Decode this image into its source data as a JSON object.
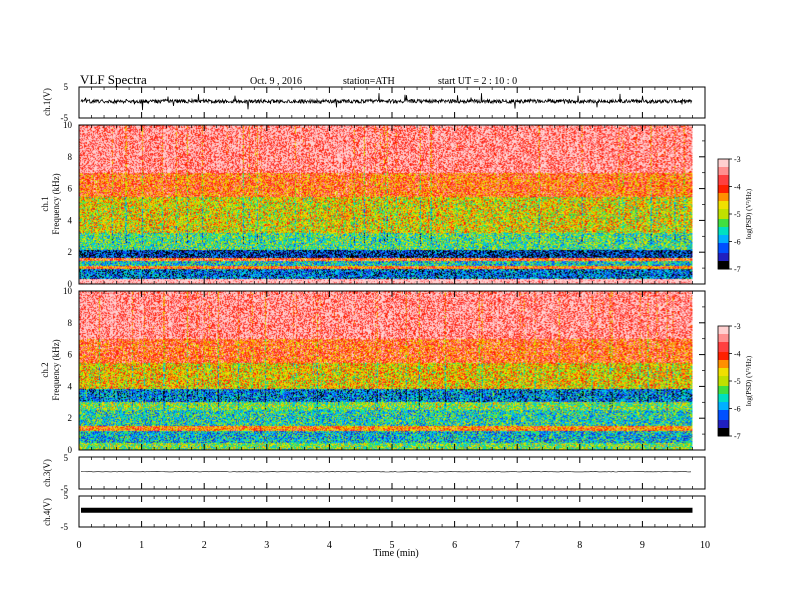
{
  "header": {
    "title": "VLF  Spectra",
    "date": "Oct. 9  , 2016",
    "station": "station=ATH",
    "start": "start  UT  =   2  : 10 : 0"
  },
  "chart_data": [
    {
      "type": "line",
      "name": "ch1-waveform",
      "ylabel": "ch.1(V)",
      "ylim": [
        -5,
        5
      ],
      "yticks": [
        "5",
        "-5"
      ],
      "baseline_v": 0.4,
      "amplitude_v": 0.6,
      "spike_v": 2.6
    },
    {
      "type": "heatmap",
      "name": "ch1-spectrogram",
      "ylabel": "ch.1\nFrequency  (kHz)",
      "ylim": [
        0,
        10
      ],
      "yticks": [
        "0",
        "2",
        "4",
        "6",
        "8",
        "10"
      ],
      "colorbar": {
        "label": "log(PSD) (V²/Hz)",
        "range": [
          -7,
          -3
        ],
        "ticks": [
          "-3",
          "-4",
          "-5",
          "-6",
          "-7"
        ]
      },
      "bands_khz": [
        {
          "from": 0,
          "to": 0.3,
          "level": -3.0
        },
        {
          "from": 0.3,
          "to": 0.9,
          "level": -6.2
        },
        {
          "from": 0.9,
          "to": 1.1,
          "level": -4.2
        },
        {
          "from": 1.1,
          "to": 1.4,
          "level": -5.7
        },
        {
          "from": 1.4,
          "to": 1.6,
          "level": -4.0
        },
        {
          "from": 1.6,
          "to": 2.1,
          "level": -6.5
        },
        {
          "from": 2.1,
          "to": 3.2,
          "level": -5.4
        },
        {
          "from": 3.2,
          "to": 5.5,
          "level": -4.8
        },
        {
          "from": 5.5,
          "to": 7.0,
          "level": -4.1
        },
        {
          "from": 7.0,
          "to": 10,
          "level": -3.4
        }
      ]
    },
    {
      "type": "heatmap",
      "name": "ch2-spectrogram",
      "ylabel": "ch.2\nFrequency  (kHz)",
      "ylim": [
        0,
        10
      ],
      "yticks": [
        "0",
        "2",
        "4",
        "6",
        "8",
        "10"
      ],
      "colorbar": {
        "label": "log(PSD) (V²/Hz)",
        "range": [
          -7,
          -3
        ],
        "ticks": [
          "-3",
          "-4",
          "-5",
          "-6",
          "-7"
        ]
      },
      "bands_khz": [
        {
          "from": 0,
          "to": 0.4,
          "level": -5.2
        },
        {
          "from": 0.4,
          "to": 1.2,
          "level": -5.8
        },
        {
          "from": 1.2,
          "to": 1.5,
          "level": -4.3
        },
        {
          "from": 1.5,
          "to": 2.5,
          "level": -5.6
        },
        {
          "from": 2.5,
          "to": 3.0,
          "level": -5.2
        },
        {
          "from": 3.0,
          "to": 3.8,
          "level": -6.1
        },
        {
          "from": 3.8,
          "to": 5.5,
          "level": -4.7
        },
        {
          "from": 5.5,
          "to": 7.0,
          "level": -4.0
        },
        {
          "from": 7.0,
          "to": 10,
          "level": -3.4
        }
      ]
    },
    {
      "type": "line",
      "name": "ch3-waveform",
      "ylabel": "ch.3(V)",
      "ylim": [
        -5,
        5
      ],
      "yticks": [
        "5",
        "-5"
      ],
      "baseline_v": 0.4
    },
    {
      "type": "line",
      "name": "ch4-waveform",
      "ylabel": "ch.4(V)",
      "ylim": [
        -5,
        5
      ],
      "yticks": [
        "5",
        "-5"
      ],
      "baseline_v": 0.4
    }
  ],
  "xaxis": {
    "xlabel": "Time  (min)",
    "xlim": [
      0,
      10
    ],
    "xticks": [
      "0",
      "1",
      "2",
      "3",
      "4",
      "5",
      "6",
      "7",
      "8",
      "9",
      "10"
    ],
    "data_end_min": 9.8
  },
  "colors": {
    "palette": [
      "#000000",
      "#2020c0",
      "#0050ff",
      "#00b0ff",
      "#00e0c0",
      "#40e040",
      "#c0e000",
      "#f0e000",
      "#ff9000",
      "#ff2000",
      "#ff4040",
      "#ff9090",
      "#ffd0d0"
    ]
  }
}
